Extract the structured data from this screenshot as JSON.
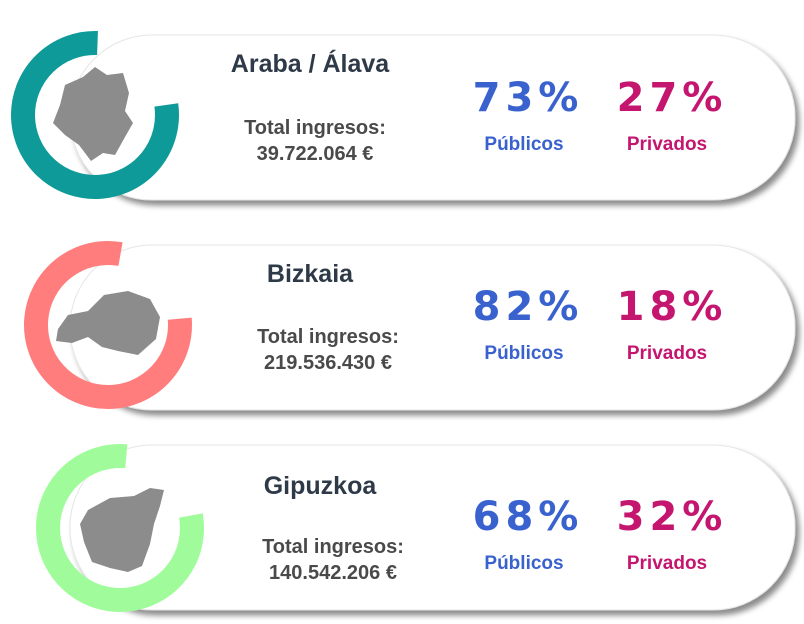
{
  "items": [
    {
      "name": "Araba / Álava",
      "total_label": "Total ingresos:",
      "total": "39.722.064 €",
      "public_value": "73%",
      "public_label": "Públicos",
      "private_value": "27%",
      "private_label": "Privados"
    },
    {
      "name": "Bizkaia",
      "total_label": "Total ingresos:",
      "total": "219.536.430 €",
      "public_value": "82%",
      "public_label": "Públicos",
      "private_value": "18%",
      "private_label": "Privados"
    },
    {
      "name": "Gipuzkoa",
      "total_label": "Total ingresos:",
      "total": "140.542.206 €",
      "public_value": "68%",
      "public_label": "Públicos",
      "private_value": "32%",
      "private_label": "Privados"
    }
  ]
}
